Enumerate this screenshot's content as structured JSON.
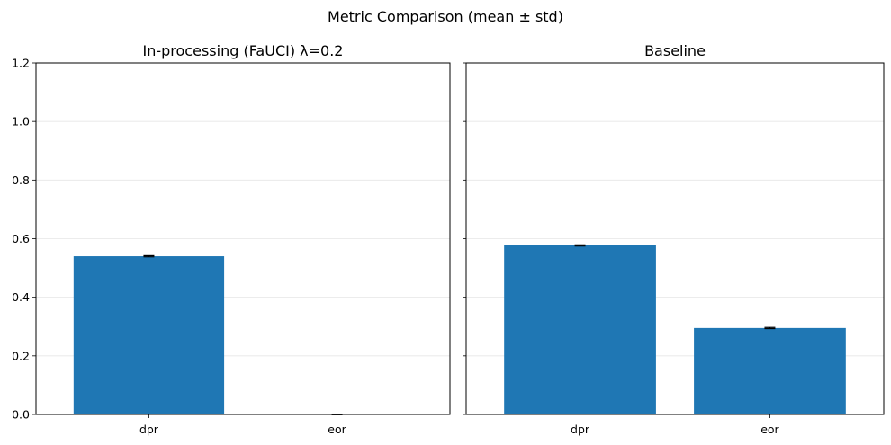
{
  "figure": {
    "title": "Metric Comparison (mean ± std)"
  },
  "chart_data": [
    {
      "type": "bar",
      "title": "In-processing (FaUCI) λ=0.2",
      "categories": [
        "dpr",
        "eor"
      ],
      "values": [
        0.54,
        0.0
      ],
      "errors": [
        0.002,
        0.001
      ],
      "ylim": [
        0,
        1.2
      ],
      "yticks": [
        "0.0",
        "0.2",
        "0.4",
        "0.6",
        "0.8",
        "1.0",
        "1.2"
      ],
      "grid": true,
      "bar_color": "#1f77b4"
    },
    {
      "type": "bar",
      "title": "Baseline",
      "categories": [
        "dpr",
        "eor"
      ],
      "values": [
        0.577,
        0.295
      ],
      "errors": [
        0.002,
        0.002
      ],
      "ylim": [
        0,
        1.2
      ],
      "yticks": [
        "0.0",
        "0.2",
        "0.4",
        "0.6",
        "0.8",
        "1.0",
        "1.2"
      ],
      "grid": true,
      "bar_color": "#1f77b4"
    }
  ]
}
